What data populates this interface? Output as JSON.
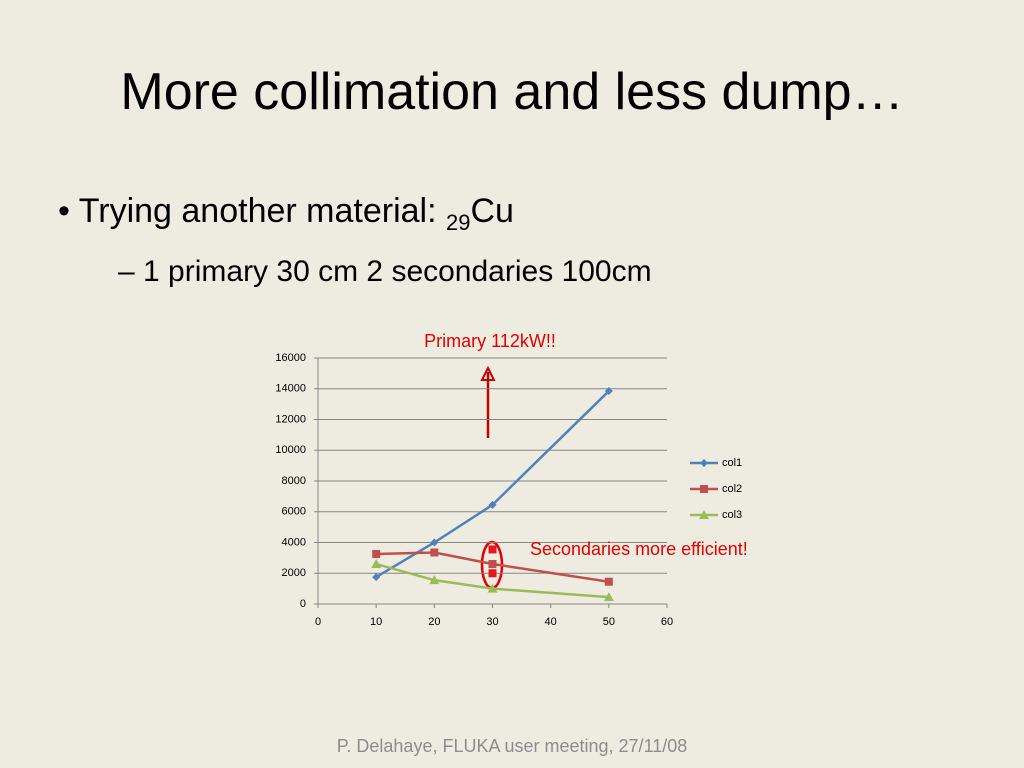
{
  "slide": {
    "title": "More collimation and less dump…",
    "bullet": {
      "text": "Trying another material: ",
      "subscript": "29",
      "element": "Cu"
    },
    "sub_bullet": "1 primary 30 cm 2 secondaries 100cm",
    "footer": "P. Delahaye, FLUKA user meeting, 27/11/08"
  },
  "chart_data": {
    "type": "line",
    "x": [
      10,
      20,
      30,
      50
    ],
    "series": [
      {
        "name": "col1",
        "color": "#4f81bd",
        "marker": "diamond",
        "values": [
          1750,
          4000,
          6450,
          13850
        ]
      },
      {
        "name": "col2",
        "color": "#c0504d",
        "marker": "square",
        "values": [
          3250,
          3350,
          2600,
          1450
        ]
      },
      {
        "name": "col3",
        "color": "#9bbb59",
        "marker": "triangle",
        "values": [
          2600,
          1550,
          1000,
          450
        ]
      }
    ],
    "extra_points": {
      "x": [
        30,
        30
      ],
      "values": [
        3550,
        2000
      ],
      "color": "#e31a1c"
    },
    "xlim": [
      0,
      60
    ],
    "xticks": [
      0,
      10,
      20,
      30,
      40,
      50,
      60
    ],
    "ylim": [
      0,
      16000
    ],
    "yticks": [
      0,
      2000,
      4000,
      6000,
      8000,
      10000,
      12000,
      14000,
      16000
    ],
    "grid": true,
    "legend": "right",
    "annotations": [
      "Primary 112kW!!",
      "Secondaries more efficient!"
    ],
    "annotation_color": "#e00000"
  }
}
